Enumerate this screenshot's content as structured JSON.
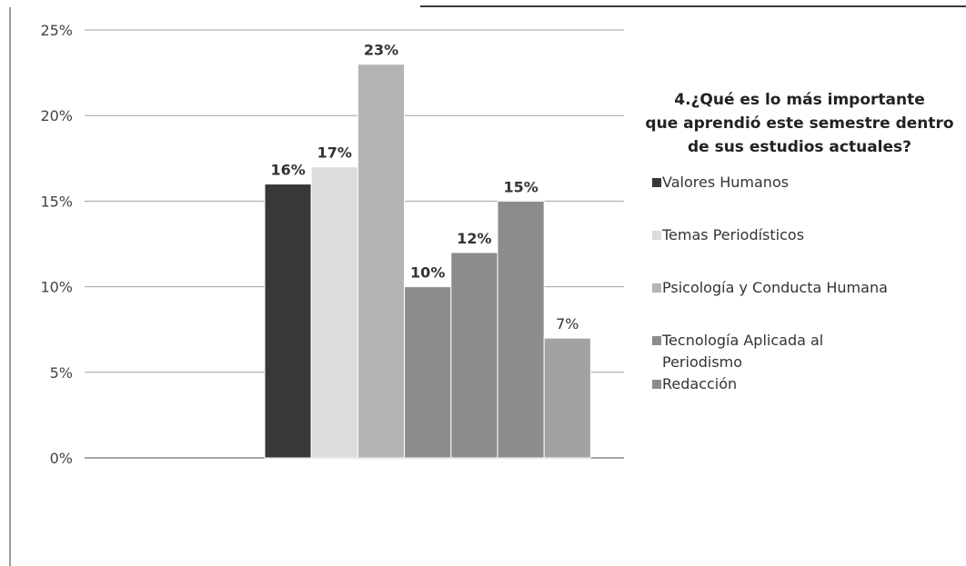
{
  "chart_data": {
    "type": "bar",
    "title": "4.¿Qué es lo más importante\nque aprendió este semestre dentro\nde sus estudios actuales?",
    "categories": [
      "Valores Humanos",
      "Temas Periodísticos",
      "Psicología y Conducta Humana",
      "Tecnología Aplicada al Periodismo",
      "Redacción",
      "",
      ""
    ],
    "values": [
      16,
      17,
      23,
      10,
      12,
      15,
      7
    ],
    "data_labels": [
      "16%",
      "17%",
      "23%",
      "10%",
      "12%",
      "15%",
      "7%"
    ],
    "bar_colors": [
      "#383838",
      "#dcdcdc",
      "#b4b4b4",
      "#8c8c8c",
      "#8c8c8c",
      "#8c8c8c",
      "#a2a2a2"
    ],
    "bold_labels": [
      true,
      true,
      true,
      true,
      true,
      true,
      false
    ],
    "ylim": [
      0,
      25
    ],
    "yticks": [
      0,
      5,
      10,
      15,
      20,
      25
    ],
    "ytick_labels": [
      "0%",
      "5%",
      "10%",
      "15%",
      "20%",
      "25%"
    ],
    "grid": true,
    "legend_position": "right",
    "legend": [
      {
        "label": "Valores Humanos",
        "color": "#383838"
      },
      {
        "label": "Temas Periodísticos",
        "color": "#dcdcdc"
      },
      {
        "label": "Psicología y Conducta Humana",
        "color": "#b4b4b4"
      },
      {
        "label": "Tecnología Aplicada al\nPeriodismo",
        "color": "#8c8c8c"
      },
      {
        "label": "Redacción",
        "color": "#8c8c8c"
      }
    ]
  }
}
